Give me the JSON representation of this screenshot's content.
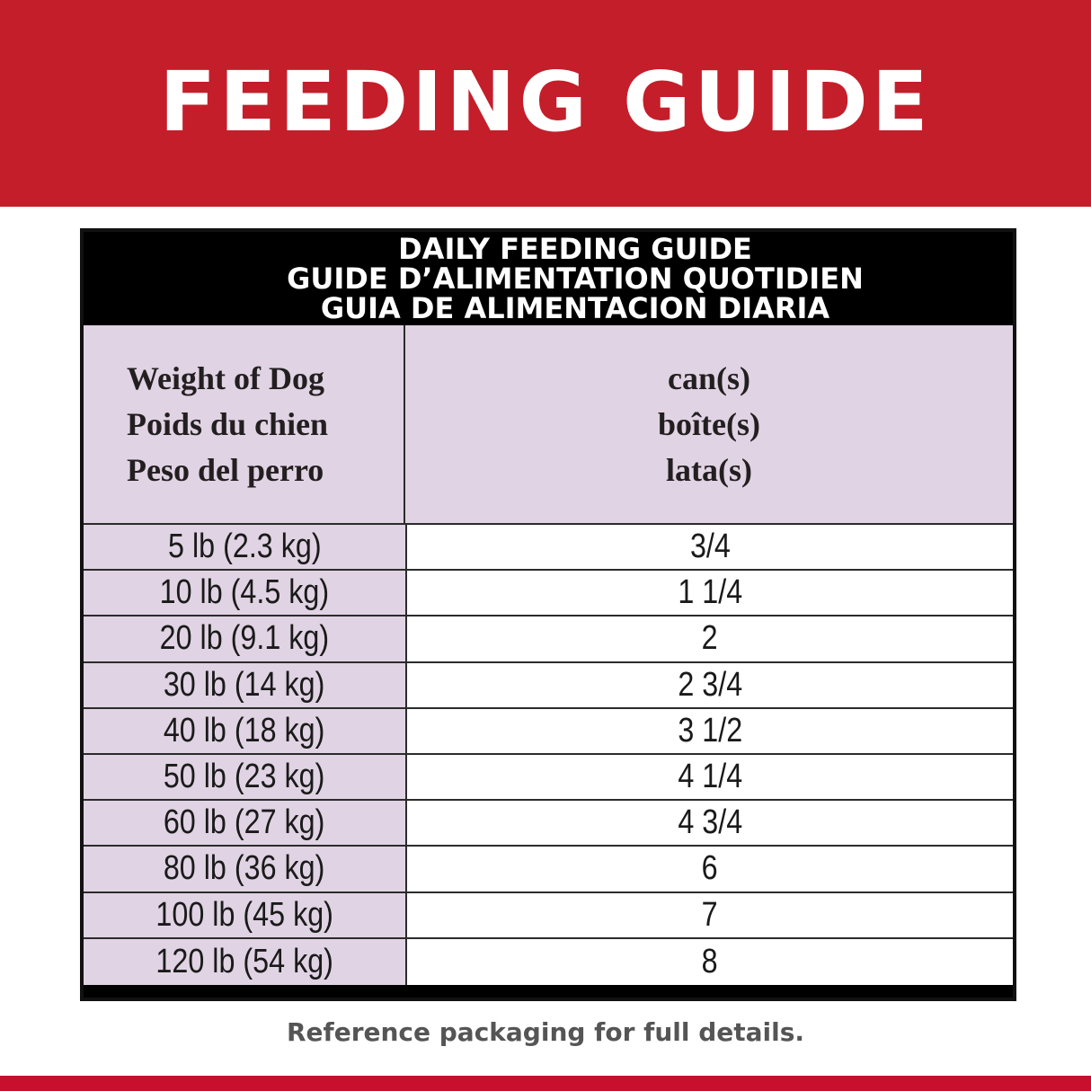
{
  "banner": {
    "title": "FEEDING GUIDE",
    "color": "#c41e2a"
  },
  "table": {
    "title_lines": [
      "DAILY FEEDING GUIDE",
      "GUIDE D’ALIMENTATION QUOTIDIEN",
      "GUIA DE ALIMENTACION DIARIA"
    ],
    "weight_header": [
      "Weight of Dog",
      "Poids du chien",
      "Peso del perro"
    ],
    "cans_header": [
      "can(s)",
      "boîte(s)",
      "lata(s)"
    ],
    "rows": [
      {
        "weight": "5 lb (2.3 kg)",
        "cans": "3/4"
      },
      {
        "weight": "10 lb (4.5 kg)",
        "cans": "1 1/4"
      },
      {
        "weight": "20 lb (9.1 kg)",
        "cans": "2"
      },
      {
        "weight": "30 lb (14 kg)",
        "cans": "2 3/4"
      },
      {
        "weight": "40 lb (18 kg)",
        "cans": "3 1/2"
      },
      {
        "weight": "50 lb (23 kg)",
        "cans": "4 1/4"
      },
      {
        "weight": "60 lb (27 kg)",
        "cans": "4 3/4"
      },
      {
        "weight": "80 lb (36 kg)",
        "cans": "6"
      },
      {
        "weight": "100 lb (45 kg)",
        "cans": "7"
      },
      {
        "weight": "120 lb (54 kg)",
        "cans": "8"
      }
    ]
  },
  "footer": {
    "note": "Reference packaging for full details."
  }
}
